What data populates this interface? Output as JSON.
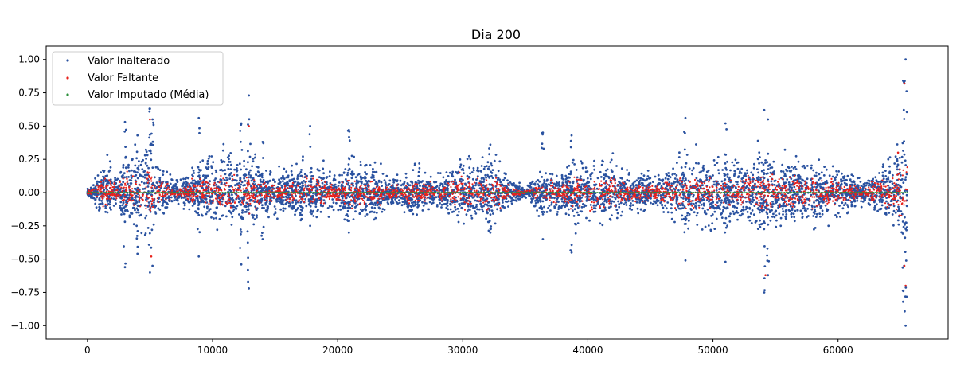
{
  "chart_data": {
    "type": "scatter",
    "title": "Dia 200",
    "xlabel": "",
    "ylabel": "",
    "xlim": [
      -3300,
      68800
    ],
    "ylim": [
      -1.1,
      1.1
    ],
    "x_ticks": [
      0,
      10000,
      20000,
      30000,
      40000,
      50000,
      60000
    ],
    "x_tick_labels": [
      "0",
      "10000",
      "20000",
      "30000",
      "40000",
      "50000",
      "60000"
    ],
    "y_ticks": [
      1.0,
      0.75,
      0.5,
      0.25,
      0.0,
      -0.25,
      -0.5,
      -0.75,
      -1.0
    ],
    "y_tick_labels": [
      "1.00",
      "0.75",
      "0.50",
      "0.25",
      "0.00",
      "−0.25",
      "−0.50",
      "−0.75",
      "−1.00"
    ],
    "grid": false,
    "legend_position": "top-left",
    "n_points": 65536,
    "series": [
      {
        "name": "Valor Inalterado",
        "color": "#2a52a0",
        "marker": "dot"
      },
      {
        "name": "Valor Faltante",
        "color": "#e8211b",
        "marker": "dot"
      },
      {
        "name": "Valor Imputado (Média)",
        "color": "#2b8f3a",
        "marker": "dot",
        "constant_value": 0.0
      }
    ],
    "envelope": {
      "x": [
        0,
        500,
        1000,
        1500,
        2000,
        2500,
        3000,
        3500,
        4000,
        4500,
        5000,
        5500,
        6000,
        6500,
        7000,
        8000,
        9000,
        10000,
        11000,
        12000,
        12500,
        13000,
        14000,
        15000,
        16000,
        17000,
        18000,
        19000,
        20000,
        21000,
        22000,
        23000,
        24000,
        25000,
        26000,
        27000,
        28000,
        29000,
        30000,
        31000,
        32000,
        33000,
        34000,
        35000,
        36000,
        37000,
        38000,
        39000,
        40000,
        41000,
        42000,
        43000,
        44000,
        45000,
        46000,
        47000,
        48000,
        49000,
        50000,
        51000,
        52000,
        53000,
        54000,
        55000,
        56000,
        57000,
        58000,
        59000,
        60000,
        61000,
        62000,
        63000,
        64000,
        64500,
        65000,
        65536
      ],
      "upper": [
        0.04,
        0.08,
        0.25,
        0.32,
        0.2,
        0.15,
        0.42,
        0.35,
        0.3,
        0.45,
        0.6,
        0.35,
        0.22,
        0.18,
        0.12,
        0.14,
        0.35,
        0.3,
        0.38,
        0.3,
        0.35,
        0.45,
        0.2,
        0.22,
        0.18,
        0.28,
        0.3,
        0.2,
        0.18,
        0.32,
        0.26,
        0.22,
        0.15,
        0.14,
        0.22,
        0.18,
        0.15,
        0.26,
        0.32,
        0.25,
        0.34,
        0.22,
        0.12,
        0.04,
        0.18,
        0.22,
        0.18,
        0.32,
        0.26,
        0.3,
        0.28,
        0.18,
        0.2,
        0.14,
        0.18,
        0.25,
        0.32,
        0.3,
        0.35,
        0.32,
        0.26,
        0.3,
        0.42,
        0.3,
        0.35,
        0.28,
        0.32,
        0.3,
        0.24,
        0.2,
        0.12,
        0.24,
        0.28,
        0.34,
        0.5,
        0.75
      ],
      "lower": [
        -0.03,
        -0.06,
        -0.2,
        -0.28,
        -0.12,
        -0.12,
        -0.38,
        -0.28,
        -0.26,
        -0.35,
        -0.45,
        -0.3,
        -0.18,
        -0.12,
        -0.1,
        -0.15,
        -0.3,
        -0.24,
        -0.3,
        -0.25,
        -0.32,
        -0.42,
        -0.18,
        -0.2,
        -0.16,
        -0.22,
        -0.24,
        -0.2,
        -0.16,
        -0.3,
        -0.2,
        -0.2,
        -0.14,
        -0.12,
        -0.22,
        -0.16,
        -0.12,
        -0.2,
        -0.28,
        -0.2,
        -0.32,
        -0.24,
        -0.1,
        -0.04,
        -0.18,
        -0.2,
        -0.18,
        -0.3,
        -0.24,
        -0.28,
        -0.26,
        -0.18,
        -0.16,
        -0.14,
        -0.18,
        -0.24,
        -0.3,
        -0.28,
        -0.32,
        -0.3,
        -0.26,
        -0.3,
        -0.4,
        -0.3,
        -0.3,
        -0.26,
        -0.3,
        -0.28,
        -0.2,
        -0.18,
        -0.1,
        -0.2,
        -0.26,
        -0.34,
        -0.5,
        -0.72
      ]
    },
    "spikes": [
      {
        "x": 3000,
        "min": -0.56,
        "max": 0.53
      },
      {
        "x": 4000,
        "min": -0.46,
        "max": 0.43
      },
      {
        "x": 5000,
        "min": -0.6,
        "max": 0.63
      },
      {
        "x": 5200,
        "min": -0.55,
        "max": 0.55
      },
      {
        "x": 8900,
        "min": -0.48,
        "max": 0.56
      },
      {
        "x": 12300,
        "min": -0.54,
        "max": 0.52
      },
      {
        "x": 12900,
        "min": -0.72,
        "max": 0.73
      },
      {
        "x": 14000,
        "min": -0.35,
        "max": 0.38
      },
      {
        "x": 17800,
        "min": -0.25,
        "max": 0.5
      },
      {
        "x": 20900,
        "min": -0.3,
        "max": 0.47
      },
      {
        "x": 32200,
        "min": -0.3,
        "max": 0.36
      },
      {
        "x": 36400,
        "min": -0.35,
        "max": 0.45
      },
      {
        "x": 38700,
        "min": -0.45,
        "max": 0.43
      },
      {
        "x": 47800,
        "min": -0.51,
        "max": 0.56
      },
      {
        "x": 51000,
        "min": -0.52,
        "max": 0.52
      },
      {
        "x": 54100,
        "min": -0.75,
        "max": 0.62
      },
      {
        "x": 54400,
        "min": -0.62,
        "max": 0.55
      },
      {
        "x": 65200,
        "min": -0.82,
        "max": 0.84
      },
      {
        "x": 65400,
        "min": -1.0,
        "max": 1.0
      }
    ]
  }
}
